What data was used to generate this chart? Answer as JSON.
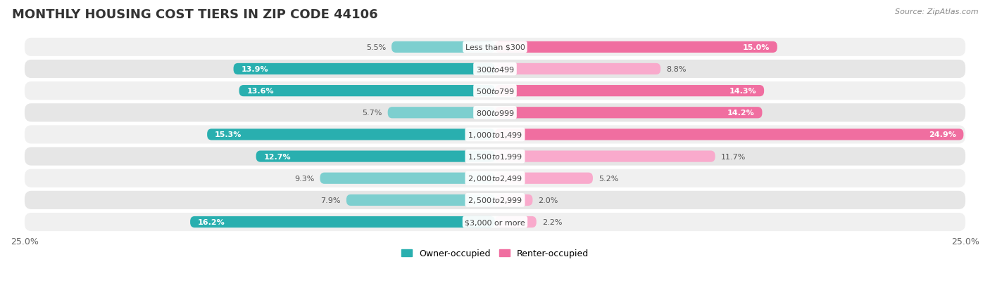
{
  "title": "MONTHLY HOUSING COST TIERS IN ZIP CODE 44106",
  "source": "Source: ZipAtlas.com",
  "categories": [
    "Less than $300",
    "$300 to $499",
    "$500 to $799",
    "$800 to $999",
    "$1,000 to $1,499",
    "$1,500 to $1,999",
    "$2,000 to $2,499",
    "$2,500 to $2,999",
    "$3,000 or more"
  ],
  "owner_values": [
    5.5,
    13.9,
    13.6,
    5.7,
    15.3,
    12.7,
    9.3,
    7.9,
    16.2
  ],
  "renter_values": [
    15.0,
    8.8,
    14.3,
    14.2,
    24.9,
    11.7,
    5.2,
    2.0,
    2.2
  ],
  "owner_color_light": "#7DCFCF",
  "owner_color_dark": "#29AFAF",
  "renter_color_light": "#F9AACC",
  "renter_color_dark": "#F06EA0",
  "axis_max": 25.0,
  "bar_height": 0.52,
  "row_bg_colors": [
    "#F0F0F0",
    "#E6E6E6"
  ],
  "label_inside_threshold": 12.0,
  "legend_owner": "Owner-occupied",
  "legend_renter": "Renter-occupied",
  "title_fontsize": 13,
  "source_fontsize": 8,
  "label_fontsize": 8,
  "cat_fontsize": 8
}
